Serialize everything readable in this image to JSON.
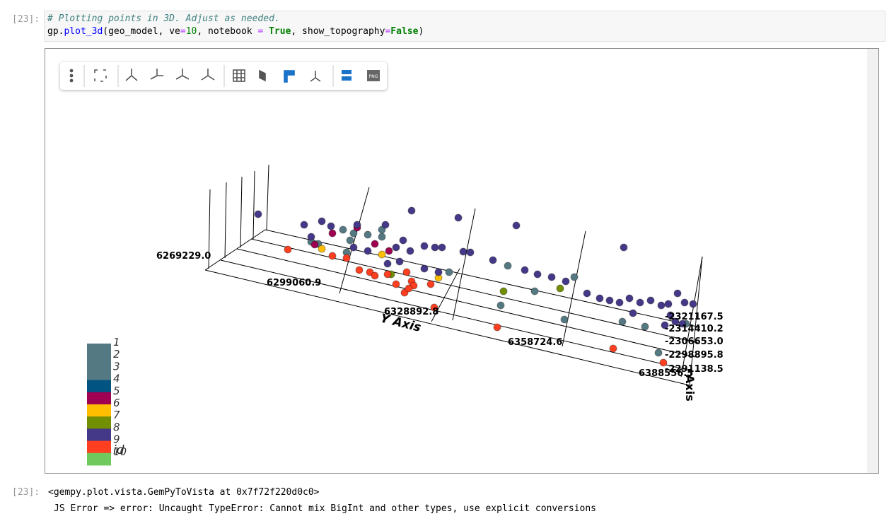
{
  "input": {
    "prompt": "[23]:",
    "comment": "# Plotting points in 3D. Adjust as needed.",
    "code_tokens": [
      "gp.",
      "plot_3d",
      "(geo_model, ve",
      "=",
      "10",
      ", notebook ",
      "=",
      " True",
      ", show_topography",
      "=",
      "False",
      ")"
    ]
  },
  "plot": {
    "y_axis_ticks": [
      "6269229.0",
      "6299060.9",
      "6328892.8",
      "6358724.6",
      "6388556.5"
    ],
    "y_axis_title": "Y Axis",
    "z_axis_ticks": [
      "-2321167.5",
      "-2314410.2",
      "-2306653.0",
      "-2298895.8",
      "-2291138.5"
    ],
    "z_axis_title": "Axis",
    "legend": {
      "title": "id",
      "items": [
        {
          "label": "1",
          "color": "#557982"
        },
        {
          "label": "2",
          "color": "#557982"
        },
        {
          "label": "3",
          "color": "#557982"
        },
        {
          "label": "4",
          "color": "#015482"
        },
        {
          "label": "5",
          "color": "#9f0052"
        },
        {
          "label": "6",
          "color": "#ffbe00"
        },
        {
          "label": "7",
          "color": "#728f02"
        },
        {
          "label": "8",
          "color": "#443988"
        },
        {
          "label": "9",
          "color": "#ff3f20"
        },
        {
          "label": "10",
          "color": "#6fc95d"
        }
      ]
    }
  },
  "output": {
    "prompt": "[23]:",
    "repr": "<gempy.plot.vista.GemPyToVista at 0x7f72f220d0c0>",
    "error": "JS Error => error: Uncaught TypeError: Cannot mix BigInt and other types, use explicit conversions"
  }
}
